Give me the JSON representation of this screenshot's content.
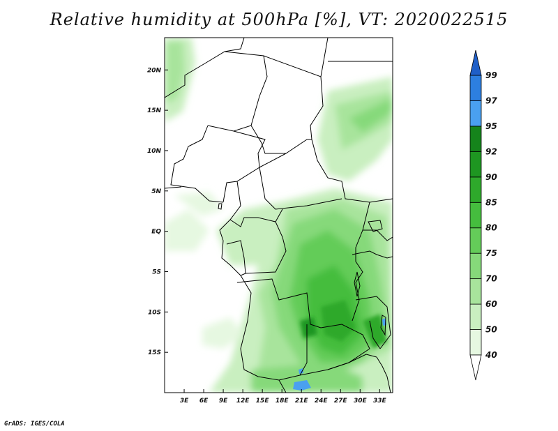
{
  "title": "Relative humidity at 500hPa [%], VT: 2020022515",
  "credit": "GrADS: IGES/COLA",
  "map": {
    "variable": "Relative humidity",
    "level": "500hPa",
    "units": "%",
    "valid_time": "2020022515",
    "lon_range": [
      0,
      35
    ],
    "lat_range": [
      -20,
      24
    ],
    "lat_tick_labels": [
      "20N",
      "15N",
      "10N",
      "5N",
      "EQ",
      "5S",
      "10S",
      "15S"
    ],
    "lon_tick_labels": [
      "3E",
      "6E",
      "9E",
      "12E",
      "15E",
      "18E",
      "21E",
      "24E",
      "27E",
      "30E",
      "33E"
    ]
  },
  "colorbar": {
    "labels": [
      "40",
      "50",
      "60",
      "70",
      "75",
      "80",
      "85",
      "90",
      "92",
      "95",
      "97",
      "99"
    ],
    "colors": [
      "#ffffff",
      "#e6f8e1",
      "#c9efc0",
      "#a8e49c",
      "#86d97a",
      "#64cc59",
      "#45bd3e",
      "#2ea92b",
      "#1e9621",
      "#15841b",
      "#4aa0f0",
      "#2d7fe0",
      "#1f5fc8"
    ]
  }
}
